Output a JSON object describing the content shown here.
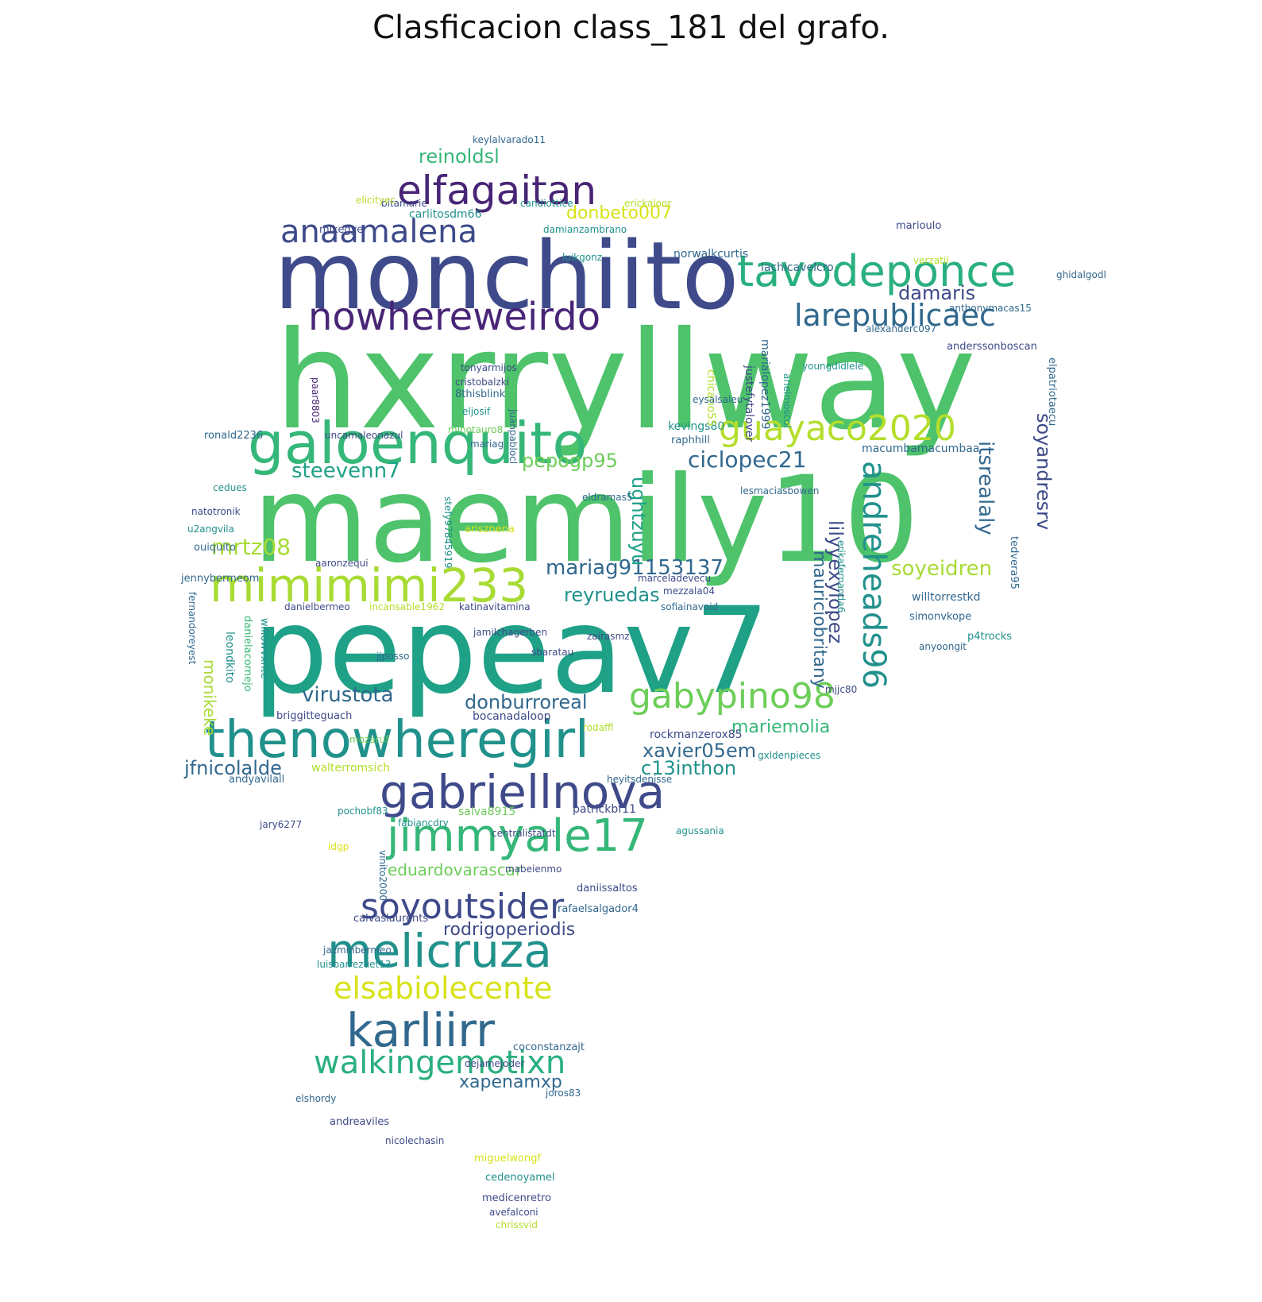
{
  "title": "Clasficacion class_181 del grafo.",
  "palette": {
    "dark_purple": "#482576",
    "indigo": "#3e4a89",
    "blue": "#31688e",
    "teal": "#21918c",
    "green_teal": "#1fa187",
    "green": "#35b779",
    "light_green": "#6dcd59",
    "lime": "#b4de2c",
    "yellow": "#d8e219"
  },
  "words": [
    {
      "text": "hxrryllway",
      "color": "#4ec36b"
    },
    {
      "text": "maemily10",
      "color": "#4ec36b"
    },
    {
      "text": "pepeav7",
      "color": "#1fa187"
    },
    {
      "text": "monchiito",
      "color": "#3e4a89"
    },
    {
      "text": "galoenquito",
      "color": "#35b779"
    },
    {
      "text": "mimimimi233",
      "color": "#a8db34"
    },
    {
      "text": "thenowheregirl",
      "color": "#21918c"
    },
    {
      "text": "gabriellnova",
      "color": "#3e4a89"
    },
    {
      "text": "jimmyale17",
      "color": "#35b779"
    },
    {
      "text": "melicruza",
      "color": "#21918c"
    },
    {
      "text": "karliirr",
      "color": "#31688e"
    },
    {
      "text": "elfagaitan",
      "color": "#482576"
    },
    {
      "text": "nowhereweirdo",
      "color": "#482576"
    },
    {
      "text": "tavodeponce",
      "color": "#2ab07f"
    },
    {
      "text": "guayaco2020",
      "color": "#b4de2c"
    },
    {
      "text": "gabypino98",
      "color": "#6dcd59"
    },
    {
      "text": "soyoutsider",
      "color": "#3e4a89"
    },
    {
      "text": "walkingemotixn",
      "color": "#2ab07f"
    },
    {
      "text": "elsabiolecente",
      "color": "#d8e219"
    },
    {
      "text": "anaamalena",
      "color": "#3e4a89"
    },
    {
      "text": "larepublicaec",
      "color": "#31688e"
    },
    {
      "text": "andreheads96",
      "color": "#21918c"
    },
    {
      "text": "reinoldsl",
      "color": "#35b779"
    },
    {
      "text": "donbeto007",
      "color": "#d8e219"
    },
    {
      "text": "steevenn7",
      "color": "#1fa187"
    },
    {
      "text": "pepogp95",
      "color": "#6dcd59"
    },
    {
      "text": "ciclopec21",
      "color": "#31688e"
    },
    {
      "text": "mrtz08",
      "color": "#a8db34"
    },
    {
      "text": "mariag91153137",
      "color": "#31688e"
    },
    {
      "text": "reyruedas",
      "color": "#21918c"
    },
    {
      "text": "soyeidren",
      "color": "#a8db34"
    },
    {
      "text": "itsrealaly",
      "color": "#31688e"
    },
    {
      "text": "soyandresrv",
      "color": "#3e4a89"
    },
    {
      "text": "lilyyexylopez",
      "color": "#3e4a89"
    },
    {
      "text": "mauriciobritany",
      "color": "#31688e"
    },
    {
      "text": "ughtzuyu",
      "color": "#1fa187"
    },
    {
      "text": "virustota",
      "color": "#31688e"
    },
    {
      "text": "donburroreal",
      "color": "#31688e"
    },
    {
      "text": "mariemolia",
      "color": "#35b779"
    },
    {
      "text": "xavier05em",
      "color": "#31688e"
    },
    {
      "text": "c13inthon",
      "color": "#21918c"
    },
    {
      "text": "jfnicolalde",
      "color": "#31688e"
    },
    {
      "text": "eduardovarascar",
      "color": "#6dcd59"
    },
    {
      "text": "rodrigoperiodis",
      "color": "#3e4a89"
    },
    {
      "text": "xapenamxp",
      "color": "#31688e"
    },
    {
      "text": "damaris",
      "color": "#3e4a89"
    },
    {
      "text": "monikeke",
      "color": "#a8db34"
    },
    {
      "text": "macumbamacumbaa",
      "color": "#31688e"
    },
    {
      "text": "carlitosdm66",
      "color": "#21918c"
    },
    {
      "text": "mikegye",
      "color": "#3e4a89"
    },
    {
      "text": "norwalkcurtis",
      "color": "#31688e"
    },
    {
      "text": "lachicavelcro",
      "color": "#31688e"
    },
    {
      "text": "anthonymacas15",
      "color": "#31688e"
    },
    {
      "text": "youngdidlele",
      "color": "#21918c"
    },
    {
      "text": "justefytalover",
      "color": "#3e4a89"
    },
    {
      "text": "marialopez1999",
      "color": "#31688e"
    },
    {
      "text": "kevings80",
      "color": "#21918c"
    },
    {
      "text": "raphhill",
      "color": "#31688e"
    },
    {
      "text": "willtorrestkd",
      "color": "#31688e"
    },
    {
      "text": "simonvkope",
      "color": "#31688e"
    },
    {
      "text": "p4trocks",
      "color": "#21918c"
    },
    {
      "text": "tedvera95",
      "color": "#31688e"
    },
    {
      "text": "elpatriotaecu",
      "color": "#31688e"
    },
    {
      "text": "marioulo",
      "color": "#3e4a89"
    },
    {
      "text": "damianzambrano",
      "color": "#21918c"
    },
    {
      "text": "walterromsich",
      "color": "#b4de2c"
    },
    {
      "text": "salva8915",
      "color": "#6dcd59"
    },
    {
      "text": "patrickbf11",
      "color": "#3e4a89"
    },
    {
      "text": "andyavilall",
      "color": "#31688e"
    },
    {
      "text": "bocanadaloop",
      "color": "#3e4a89"
    },
    {
      "text": "briggitteguach",
      "color": "#3e4a89"
    },
    {
      "text": "leondkito",
      "color": "#21918c"
    },
    {
      "text": "danielacornejo",
      "color": "#35b779"
    },
    {
      "text": "willowvxnte",
      "color": "#21918c"
    },
    {
      "text": "fernandoreyest",
      "color": "#31688e"
    },
    {
      "text": "jennybermeom",
      "color": "#31688e"
    },
    {
      "text": "ouiquito",
      "color": "#31688e"
    },
    {
      "text": "u2angvila",
      "color": "#21918c"
    },
    {
      "text": "natotronik",
      "color": "#3e4a89"
    },
    {
      "text": "ronald2236",
      "color": "#31688e"
    },
    {
      "text": "uncamaleonazul",
      "color": "#3e4a89"
    },
    {
      "text": "minotauro8",
      "color": "#6dcd59"
    },
    {
      "text": "juanpablocl",
      "color": "#31688e"
    },
    {
      "text": "cristobalzki",
      "color": "#3e4a89"
    },
    {
      "text": "8thisblink",
      "color": "#31688e"
    },
    {
      "text": "eljosif",
      "color": "#21918c"
    },
    {
      "text": "paar8803",
      "color": "#482576"
    },
    {
      "text": "stefy97845919",
      "color": "#21918c"
    },
    {
      "text": "incansable1962",
      "color": "#b4de2c"
    },
    {
      "text": "danielbermeo",
      "color": "#3e4a89"
    },
    {
      "text": "katinavitamina",
      "color": "#3e4a89"
    },
    {
      "text": "jamilchagerben",
      "color": "#3e4a89"
    },
    {
      "text": "sofiainavoid",
      "color": "#31688e"
    },
    {
      "text": "mezzala04",
      "color": "#3e4a89"
    },
    {
      "text": "marceladevecu",
      "color": "#3e4a89"
    },
    {
      "text": "eldramas5",
      "color": "#31688e"
    },
    {
      "text": "lesmaciasbowen",
      "color": "#31688e"
    },
    {
      "text": "anyoongit",
      "color": "#31688e"
    },
    {
      "text": "mjjc80",
      "color": "#3e4a89"
    },
    {
      "text": "rockmanzerox85",
      "color": "#3e4a89"
    },
    {
      "text": "heyitsdenisse",
      "color": "#31688e"
    },
    {
      "text": "pochobf83",
      "color": "#21918c"
    },
    {
      "text": "jary6277",
      "color": "#3e4a89"
    },
    {
      "text": "fabiancdry",
      "color": "#21918c"
    },
    {
      "text": "idgp",
      "color": "#d8e219"
    },
    {
      "text": "vinito2000",
      "color": "#31688e"
    },
    {
      "text": "daniissaltos",
      "color": "#3e4a89"
    },
    {
      "text": "rafaelsalgador4",
      "color": "#31688e"
    },
    {
      "text": "calvaslaurents",
      "color": "#3e4a89"
    },
    {
      "text": "jazminbermeo",
      "color": "#31688e"
    },
    {
      "text": "luisbarrezuet13",
      "color": "#21918c"
    },
    {
      "text": "coconstanzajt",
      "color": "#31688e"
    },
    {
      "text": "dejamejoder",
      "color": "#3e4a89"
    },
    {
      "text": "elshordy",
      "color": "#31688e"
    },
    {
      "text": "andreaviles",
      "color": "#3e4a89"
    },
    {
      "text": "nicolechasin",
      "color": "#3e4a89"
    },
    {
      "text": "miguelwongf",
      "color": "#d8e219"
    },
    {
      "text": "cedenoyamel",
      "color": "#21918c"
    },
    {
      "text": "medicenretro",
      "color": "#3e4a89"
    },
    {
      "text": "avefalconi",
      "color": "#3e4a89"
    },
    {
      "text": "chrissvid",
      "color": "#b4de2c"
    },
    {
      "text": "joros83",
      "color": "#31688e"
    },
    {
      "text": "keylalvarado11",
      "color": "#31688e"
    },
    {
      "text": "bitamarie",
      "color": "#3e4a89"
    },
    {
      "text": "candiottice",
      "color": "#21918c"
    },
    {
      "text": "erickaloor",
      "color": "#b4de2c"
    },
    {
      "text": "elicityec",
      "color": "#b4de2c"
    },
    {
      "text": "luikgonz",
      "color": "#21918c"
    },
    {
      "text": "anderssonboscan",
      "color": "#3e4a89"
    },
    {
      "text": "alexanderc097",
      "color": "#31688e"
    },
    {
      "text": "ghidalgodl",
      "color": "#31688e"
    },
    {
      "text": "verzatil",
      "color": "#b4de2c"
    },
    {
      "text": "chicano55",
      "color": "#b4de2c"
    },
    {
      "text": "arielmoscol",
      "color": "#21918c"
    },
    {
      "text": "tonyarmijos",
      "color": "#3e4a89"
    },
    {
      "text": "mariag",
      "color": "#31688e"
    },
    {
      "text": "eysalsaleu",
      "color": "#31688e"
    },
    {
      "text": "erikafernanda6",
      "color": "#21918c"
    },
    {
      "text": "mozaruf",
      "color": "#6dcd59"
    },
    {
      "text": "arisznena",
      "color": "#d8e219"
    },
    {
      "text": "cedues",
      "color": "#21918c"
    },
    {
      "text": "aaronzequi",
      "color": "#3e4a89"
    },
    {
      "text": "jjposso",
      "color": "#31688e"
    },
    {
      "text": "sbaratau",
      "color": "#3e4a89"
    },
    {
      "text": "zairasmz",
      "color": "#3e4a89"
    },
    {
      "text": "centralistatdt",
      "color": "#3e4a89"
    },
    {
      "text": "agussania",
      "color": "#21918c"
    },
    {
      "text": "rodaffl",
      "color": "#b4de2c"
    },
    {
      "text": "gxldenpieces",
      "color": "#21918c"
    },
    {
      "text": "mabeienmo",
      "color": "#3e4a89"
    }
  ]
}
